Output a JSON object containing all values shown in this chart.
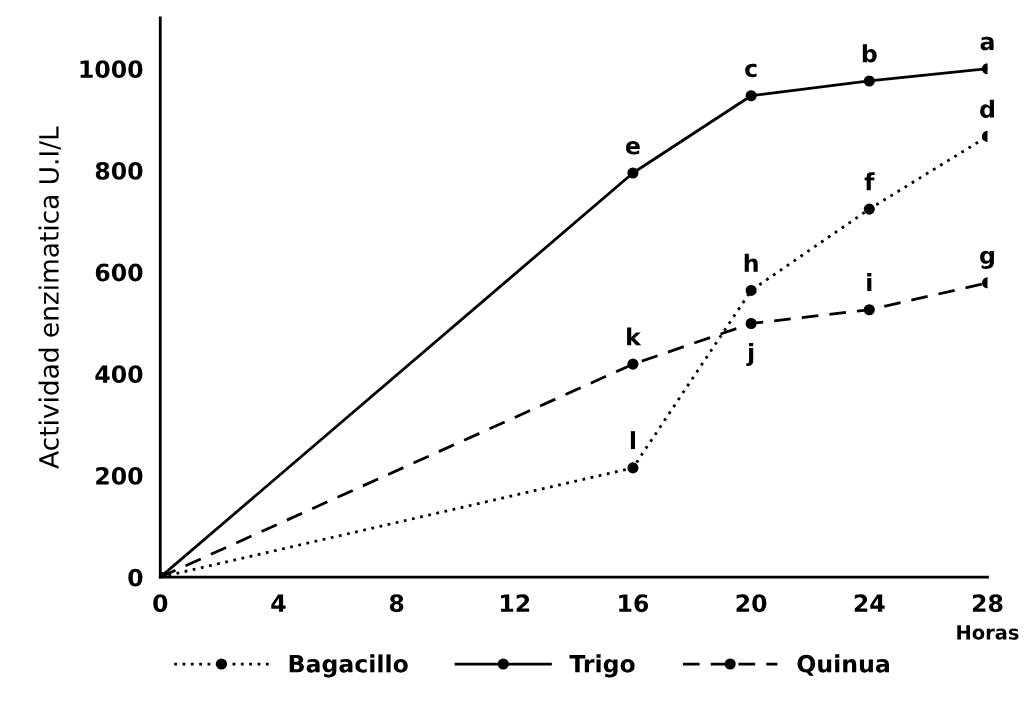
{
  "chart_data": {
    "type": "line",
    "ylabel": "Actividad enzimatica U.I/L",
    "xlabel": "Horas",
    "x": [
      0,
      16,
      20,
      24,
      28
    ],
    "xlim": [
      0,
      28
    ],
    "xticks": [
      0,
      4,
      8,
      12,
      16,
      20,
      24,
      28
    ],
    "ylim": [
      0,
      1100
    ],
    "yticks": [
      0,
      200,
      400,
      600,
      800,
      1000
    ],
    "grid": false,
    "legend": "bottom",
    "marker": "circle",
    "series": [
      {
        "name": "Bagacillo",
        "color": "#000000",
        "line_style": "dotted",
        "values": [
          0,
          215,
          564,
          724,
          867
        ]
      },
      {
        "name": "Trigo",
        "color": "#000000",
        "line_style": "solid",
        "values": [
          0,
          795,
          947,
          976,
          1000
        ]
      },
      {
        "name": "Quinua",
        "color": "#000000",
        "line_style": "dashed",
        "values": [
          0,
          419,
          499,
          526,
          579
        ]
      }
    ],
    "annotations": [
      {
        "text": "a",
        "x": 28,
        "y": 1000
      },
      {
        "text": "b",
        "x": 24,
        "y": 976
      },
      {
        "text": "c",
        "x": 20,
        "y": 947
      },
      {
        "text": "d",
        "x": 28,
        "y": 867
      },
      {
        "text": "e",
        "x": 16,
        "y": 795
      },
      {
        "text": "f",
        "x": 24,
        "y": 724
      },
      {
        "text": "g",
        "x": 28,
        "y": 579
      },
      {
        "text": "h",
        "x": 20,
        "y": 564
      },
      {
        "text": "i",
        "x": 24,
        "y": 526
      },
      {
        "text": "j",
        "x": 20,
        "y": 499
      },
      {
        "text": "k",
        "x": 16,
        "y": 419
      },
      {
        "text": "l",
        "x": 16,
        "y": 215
      }
    ]
  }
}
